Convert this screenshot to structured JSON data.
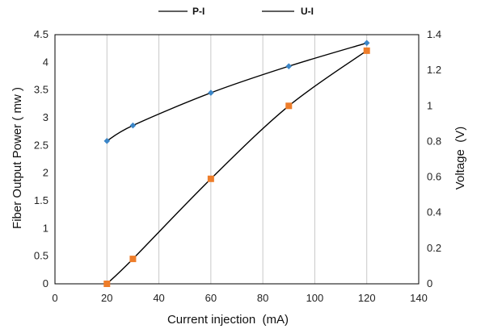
{
  "chart_data": {
    "type": "line",
    "title": "",
    "xlabel": "Current injection  (mA)",
    "ylabel_left": "Fiber Output Power ( mw )",
    "ylabel_right": "Voltage  (V)",
    "xlim": [
      0,
      140
    ],
    "xticks": [
      "0",
      "20",
      "40",
      "60",
      "80",
      "100",
      "120",
      "140"
    ],
    "ylim_left": [
      0,
      4.5
    ],
    "yticks_left": [
      "0",
      "0.5",
      "1",
      "1.5",
      "2",
      "2.5",
      "3",
      "3.5",
      "4",
      "4.5"
    ],
    "ylim_right": [
      0,
      1.4
    ],
    "yticks_right": [
      "0",
      "0.2",
      "0.4",
      "0.6",
      "0.8",
      "1",
      "1.2",
      "1.4"
    ],
    "grid": "vertical",
    "legend_position": "top",
    "series": [
      {
        "name": "P-I",
        "axis": "left",
        "marker": "diamond",
        "marker_color": "#3b86c8",
        "line_color": "#000000",
        "x": [
          20,
          30,
          60,
          90,
          120
        ],
        "y": [
          2.58,
          2.86,
          3.45,
          3.93,
          4.35
        ]
      },
      {
        "name": "U-I",
        "axis": "right",
        "marker": "square",
        "marker_color": "#ee7d2a",
        "line_color": "#000000",
        "x": [
          20,
          30,
          60,
          90,
          120
        ],
        "y": [
          0.0,
          0.14,
          0.59,
          1.0,
          1.31
        ]
      }
    ]
  }
}
